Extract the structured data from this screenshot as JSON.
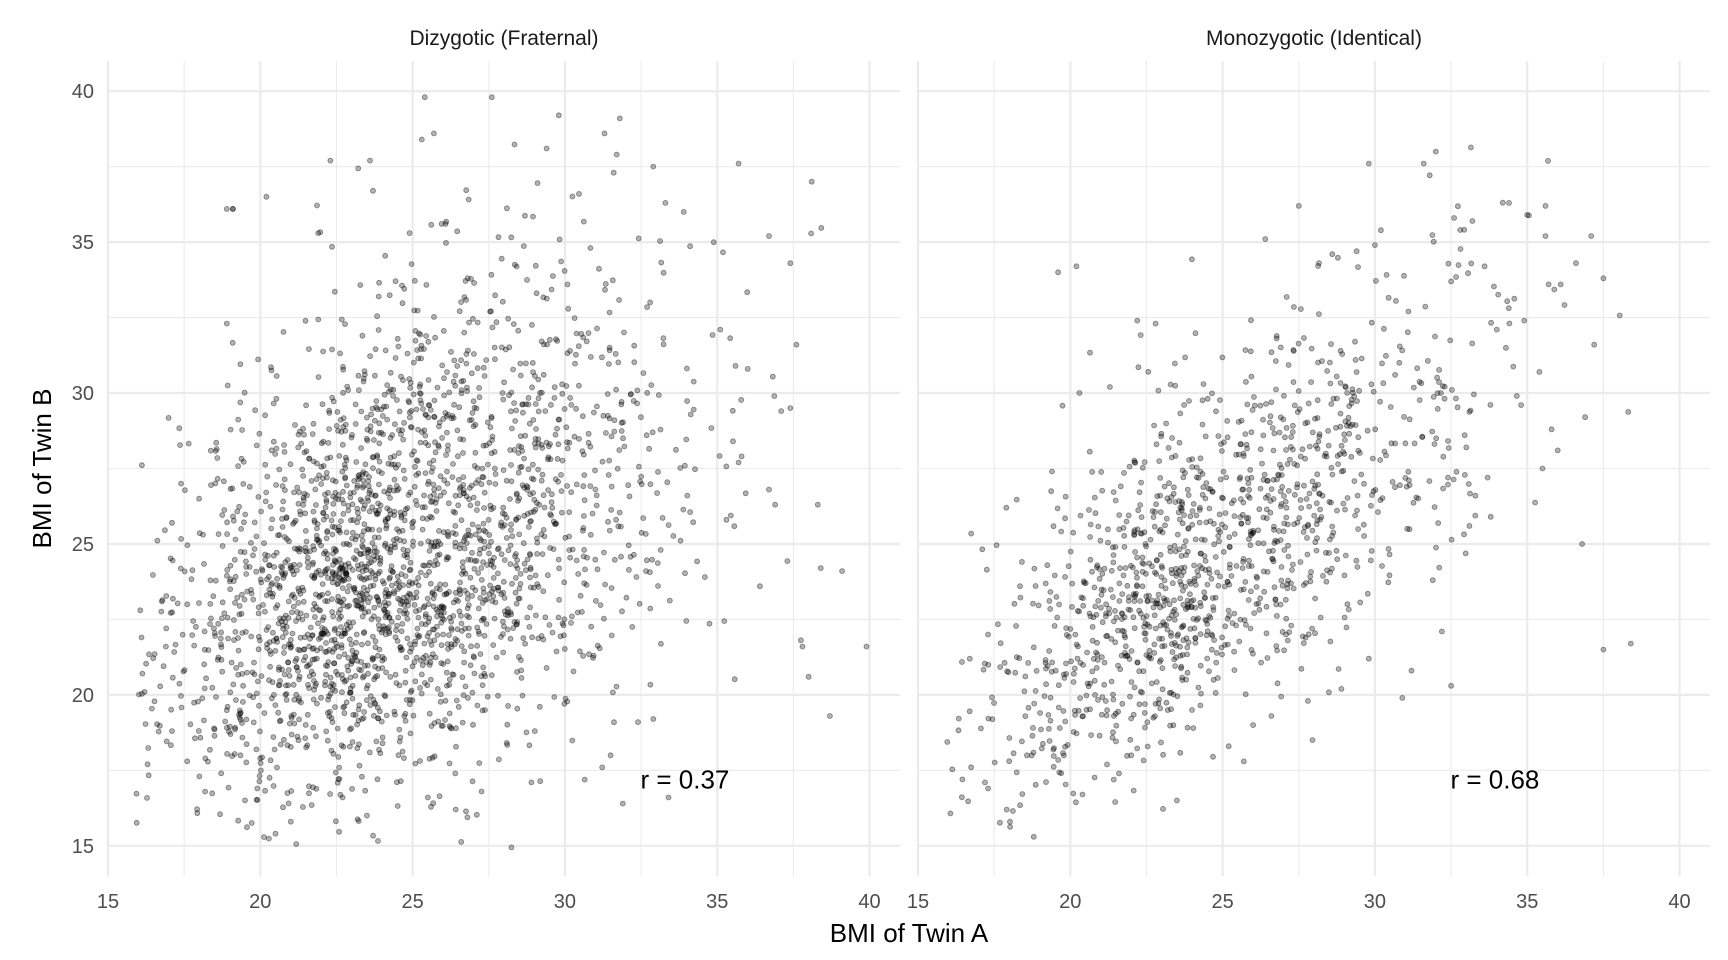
{
  "chart_data": {
    "type": "scatter",
    "xlabel": "BMI of Twin A",
    "ylabel": "BMI of Twin B",
    "xlim": [
      15,
      41
    ],
    "ylim": [
      14,
      41
    ],
    "x_ticks": [
      15,
      20,
      25,
      30,
      35,
      40
    ],
    "y_ticks": [
      15,
      20,
      25,
      30,
      35,
      40
    ],
    "grid": true,
    "point_color": "#000000",
    "panels": [
      {
        "title": "Dizygotic (Fraternal)",
        "annotation": "r = 0.37",
        "n_points": 2500,
        "mean_x": 24.3,
        "mean_y": 24.3,
        "sd_x": 3.6,
        "sd_y": 3.6,
        "correlation": 0.37,
        "points": [
          [
            25.4,
            39.8
          ],
          [
            27.6,
            39.8
          ],
          [
            29.8,
            39.2
          ],
          [
            31.8,
            39.1
          ],
          [
            25.3,
            38.4
          ],
          [
            25.7,
            38.6
          ],
          [
            29.4,
            38.1
          ],
          [
            31.3,
            38.6
          ],
          [
            22.3,
            37.7
          ],
          [
            23.6,
            37.7
          ],
          [
            31.6,
            37.3
          ],
          [
            31.7,
            37.9
          ],
          [
            32.9,
            37.5
          ],
          [
            35.7,
            37.6
          ],
          [
            38.1,
            37.0
          ],
          [
            23.7,
            36.7
          ],
          [
            18.9,
            36.1
          ],
          [
            19.1,
            36.1
          ],
          [
            20.2,
            36.5
          ],
          [
            33.3,
            36.3
          ],
          [
            33.9,
            36.0
          ],
          [
            36.7,
            35.2
          ],
          [
            37.4,
            34.3
          ],
          [
            37.6,
            31.6
          ],
          [
            35.1,
            32.1
          ],
          [
            35.6,
            30.9
          ],
          [
            36.0,
            30.8
          ],
          [
            37.1,
            29.4
          ],
          [
            37.4,
            29.5
          ],
          [
            35.8,
            27.9
          ],
          [
            35.7,
            27.7
          ],
          [
            36.7,
            26.8
          ],
          [
            36.9,
            26.3
          ],
          [
            38.3,
            26.3
          ],
          [
            35.3,
            25.8
          ],
          [
            36.4,
            23.6
          ],
          [
            38.4,
            24.2
          ],
          [
            39.1,
            24.1
          ],
          [
            37.8,
            21.6
          ],
          [
            38.0,
            20.6
          ],
          [
            39.9,
            21.6
          ],
          [
            38.7,
            19.3
          ],
          [
            16.1,
            21.9
          ],
          [
            16.2,
            20.1
          ],
          [
            16.3,
            17.7
          ],
          [
            17.1,
            18.8
          ],
          [
            17.6,
            17.8
          ],
          [
            18.0,
            17.3
          ],
          [
            19.9,
            16.9
          ],
          [
            21.0,
            15.8
          ],
          [
            20.5,
            15.4
          ],
          [
            23.5,
            16.0
          ],
          [
            25.5,
            16.6
          ],
          [
            22.7,
            16.6
          ],
          [
            19.1,
            36.1
          ],
          [
            24.9,
            35.3
          ],
          [
            21.9,
            35.3
          ],
          [
            18.9,
            32.3
          ],
          [
            17.4,
            27.0
          ],
          [
            17.1,
            25.7
          ],
          [
            16.9,
            21.6
          ],
          [
            17.6,
            23.0
          ],
          [
            32.4,
            19.1
          ],
          [
            32.9,
            19.2
          ],
          [
            31.5,
            18.0
          ],
          [
            28.9,
            17.1
          ],
          [
            26.4,
            17.4
          ],
          [
            33.4,
            16.6
          ],
          [
            31.9,
            16.4
          ]
        ]
      },
      {
        "title": "Monozygotic (Identical)",
        "annotation": "r = 0.68",
        "n_points": 1300,
        "mean_x": 24.3,
        "mean_y": 24.3,
        "sd_x": 3.5,
        "sd_y": 3.5,
        "correlation": 0.68,
        "points": [
          [
            29.8,
            37.6
          ],
          [
            31.6,
            37.6
          ],
          [
            32.0,
            38.0
          ],
          [
            27.5,
            36.2
          ],
          [
            34.4,
            36.3
          ],
          [
            35.6,
            36.2
          ],
          [
            35.0,
            35.9
          ],
          [
            35.6,
            35.2
          ],
          [
            37.1,
            35.2
          ],
          [
            26.4,
            35.1
          ],
          [
            30.0,
            34.9
          ],
          [
            32.8,
            35.4
          ],
          [
            33.2,
            35.7
          ],
          [
            32.6,
            35.8
          ],
          [
            28.6,
            34.6
          ],
          [
            29.4,
            34.7
          ],
          [
            36.6,
            34.3
          ],
          [
            37.5,
            33.8
          ],
          [
            36.1,
            33.6
          ],
          [
            35.7,
            33.6
          ],
          [
            33.6,
            34.2
          ],
          [
            32.5,
            33.7
          ],
          [
            19.6,
            34.0
          ],
          [
            20.2,
            34.2
          ],
          [
            31.1,
            32.7
          ],
          [
            34.9,
            32.4
          ],
          [
            34.0,
            32.1
          ],
          [
            34.3,
            31.5
          ],
          [
            37.2,
            31.6
          ],
          [
            35.4,
            30.7
          ],
          [
            36.0,
            28.1
          ],
          [
            35.5,
            27.5
          ],
          [
            36.9,
            29.2
          ],
          [
            36.8,
            25.0
          ],
          [
            37.5,
            21.5
          ],
          [
            38.4,
            21.7
          ],
          [
            32.5,
            20.3
          ],
          [
            31.2,
            20.8
          ],
          [
            30.9,
            19.9
          ],
          [
            29.8,
            21.2
          ],
          [
            17.3,
            22.0
          ],
          [
            16.7,
            21.2
          ],
          [
            17.2,
            17.1
          ],
          [
            17.3,
            16.9
          ],
          [
            18.8,
            15.3
          ],
          [
            20.4,
            16.7
          ],
          [
            21.6,
            17.4
          ],
          [
            23.5,
            16.5
          ],
          [
            22.0,
            18.0
          ],
          [
            25.2,
            18.3
          ],
          [
            26.0,
            19.0
          ],
          [
            26.6,
            19.3
          ],
          [
            27.8,
            19.8
          ],
          [
            28.9,
            20.2
          ],
          [
            17.9,
            26.2
          ],
          [
            19.4,
            27.4
          ],
          [
            20.3,
            30.0
          ],
          [
            21.3,
            30.2
          ],
          [
            22.2,
            32.4
          ],
          [
            22.8,
            32.3
          ],
          [
            33.7,
            27.2
          ],
          [
            33.8,
            25.9
          ],
          [
            33.1,
            25.6
          ],
          [
            33.3,
            26.6
          ],
          [
            32.4,
            27.2
          ],
          [
            33.0,
            28.2
          ],
          [
            35.8,
            28.8
          ],
          [
            34.8,
            29.6
          ],
          [
            31.9,
            23.8
          ],
          [
            32.2,
            22.1
          ]
        ]
      }
    ]
  }
}
